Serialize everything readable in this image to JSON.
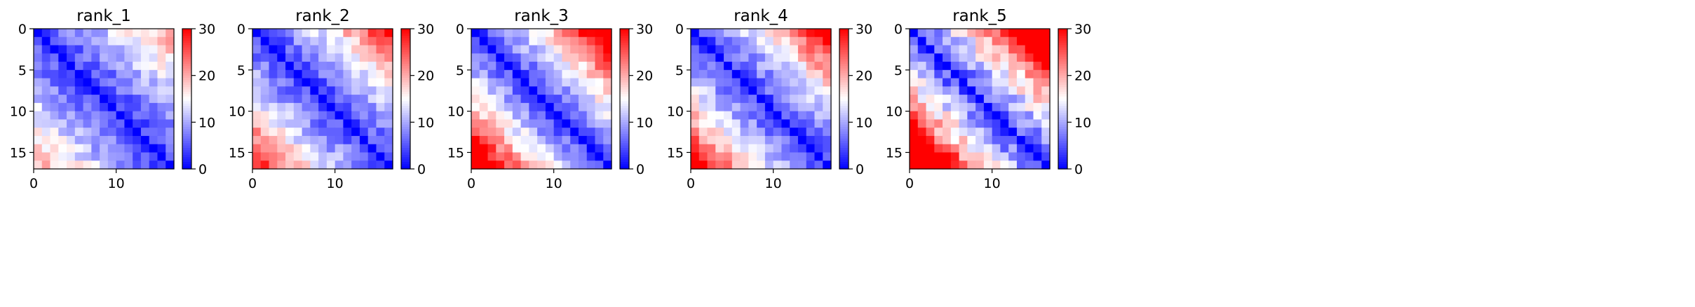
{
  "colormap": {
    "name": "bwr",
    "colors": [
      "#0000ff",
      "#ffffff",
      "#ff0000"
    ]
  },
  "chart_data": [
    {
      "type": "heatmap",
      "title": "rank_1",
      "size": 17,
      "scale": 0.5,
      "rough": 3,
      "edge_boost": 0,
      "xlim": [
        0,
        17
      ],
      "ylim": [
        17,
        0
      ],
      "xticks": [
        0,
        10
      ],
      "xtick_labels": [
        "0",
        "10"
      ],
      "yticks": [
        0,
        5,
        10,
        15
      ],
      "ytick_labels": [
        "0",
        "5",
        "10",
        "15"
      ],
      "colorbar": {
        "range": [
          0,
          30
        ],
        "ticks": [
          0,
          10,
          20,
          30
        ],
        "tick_labels": [
          "0",
          "10",
          "20",
          "30"
        ]
      }
    },
    {
      "type": "heatmap",
      "title": "rank_2",
      "size": 17,
      "scale": 0.62,
      "rough": 3,
      "edge_boost": 2,
      "xlim": [
        0,
        17
      ],
      "ylim": [
        17,
        0
      ],
      "xticks": [
        0,
        10
      ],
      "xtick_labels": [
        "0",
        "10"
      ],
      "yticks": [
        0,
        5,
        10,
        15
      ],
      "ytick_labels": [
        "0",
        "5",
        "10",
        "15"
      ],
      "colorbar": {
        "range": [
          0,
          30
        ],
        "ticks": [
          0,
          10,
          20,
          30
        ],
        "tick_labels": [
          "0",
          "10",
          "20",
          "30"
        ]
      }
    },
    {
      "type": "heatmap",
      "title": "rank_3",
      "size": 17,
      "scale": 0.78,
      "rough": 3,
      "edge_boost": 3,
      "xlim": [
        0,
        17
      ],
      "ylim": [
        17,
        0
      ],
      "xticks": [
        0,
        10
      ],
      "xtick_labels": [
        "0",
        "10"
      ],
      "yticks": [
        0,
        5,
        10,
        15
      ],
      "ytick_labels": [
        "0",
        "5",
        "10",
        "15"
      ],
      "colorbar": {
        "range": [
          0,
          30
        ],
        "ticks": [
          0,
          10,
          20,
          30
        ],
        "tick_labels": [
          "0",
          "10",
          "20",
          "30"
        ]
      }
    },
    {
      "type": "heatmap",
      "title": "rank_4",
      "size": 17,
      "scale": 0.68,
      "rough": 3,
      "edge_boost": 2,
      "xlim": [
        0,
        17
      ],
      "ylim": [
        17,
        0
      ],
      "xticks": [
        0,
        10
      ],
      "xtick_labels": [
        "0",
        "10"
      ],
      "yticks": [
        0,
        5,
        10,
        15
      ],
      "ytick_labels": [
        "0",
        "5",
        "10",
        "15"
      ],
      "colorbar": {
        "range": [
          0,
          30
        ],
        "ticks": [
          0,
          10,
          20,
          30
        ],
        "tick_labels": [
          "0",
          "10",
          "20",
          "30"
        ]
      }
    },
    {
      "type": "heatmap",
      "title": "rank_5",
      "size": 17,
      "scale": 0.95,
      "rough": 4,
      "edge_boost": 5,
      "xlim": [
        0,
        17
      ],
      "ylim": [
        17,
        0
      ],
      "xticks": [
        0,
        10
      ],
      "xtick_labels": [
        "0",
        "10"
      ],
      "yticks": [
        0,
        5,
        10,
        15
      ],
      "ytick_labels": [
        "0",
        "5",
        "10",
        "15"
      ],
      "colorbar": {
        "range": [
          0,
          30
        ],
        "ticks": [
          0,
          10,
          20,
          30
        ],
        "tick_labels": [
          "0",
          "10",
          "20",
          "30"
        ]
      }
    }
  ]
}
